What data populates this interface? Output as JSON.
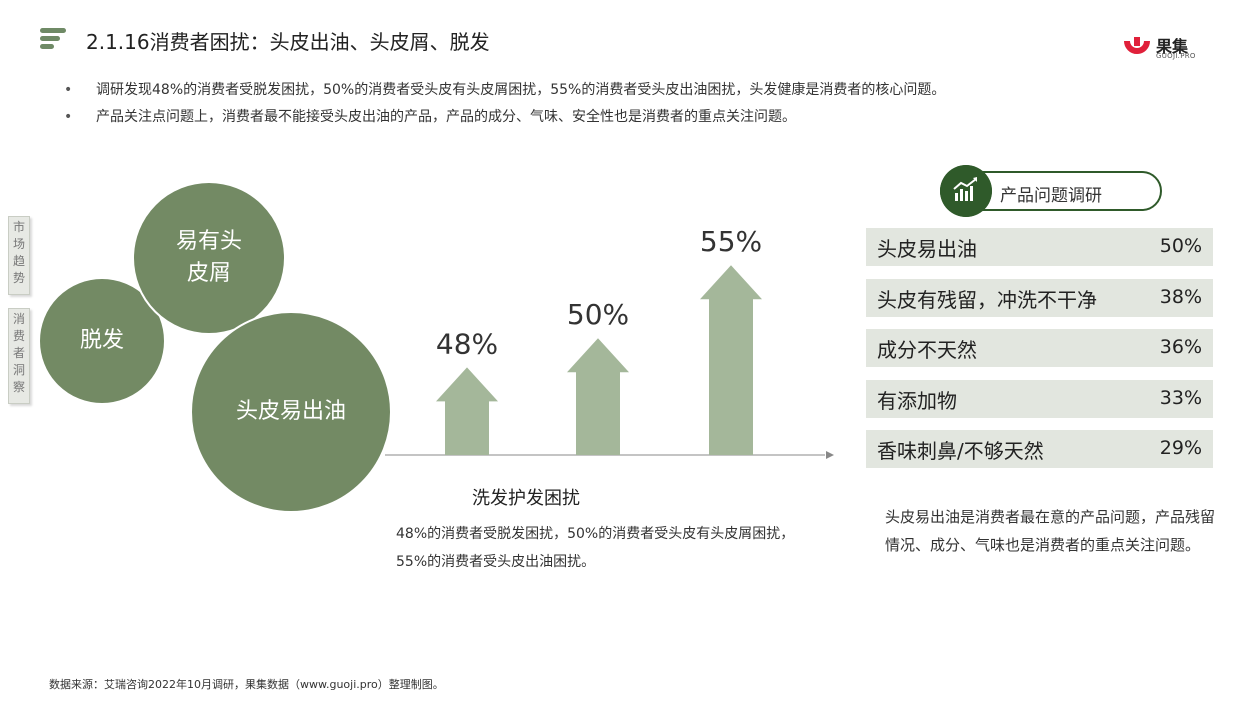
{
  "header": {
    "title": "2.1.16消费者困扰：头皮出油、头皮屑、脱发",
    "logo_name": "果集",
    "logo_sub": "GUOJI.PRO"
  },
  "bullets": [
    "调研发现48%的消费者受脱发困扰，50%的消费者受头皮有头皮屑困扰，55%的消费者受头皮出油困扰，头发健康是消费者的核心问题。",
    "产品关注点问题上，消费者最不能接受头皮出油的产品，产品的成分、气味、安全性也是消费者的重点关注问题。"
  ],
  "side_tabs": [
    "市场趋势",
    "消费者洞察"
  ],
  "bubbles": {
    "hair_loss": "脱发",
    "dandruff": "易有头皮屑",
    "oil": "头皮易出油"
  },
  "chart_label": "洗发护发困扰",
  "chart_desc": "48%的消费者受脱发困扰，50%的消费者受头皮有头皮屑困扰，55%的消费者受头皮出油困扰。",
  "chart_data": {
    "type": "bar",
    "categories": [
      "脱发",
      "易有头皮屑",
      "头皮易出油"
    ],
    "values": [
      48,
      50,
      55
    ],
    "value_labels": [
      "48%",
      "50%",
      "55%"
    ],
    "title": "",
    "xlabel": "",
    "ylabel": "",
    "bar_color": "#a4b79a",
    "axis_color": "#888888"
  },
  "survey": {
    "title": "产品问题调研",
    "items": [
      {
        "label": "头皮易出油",
        "value": "50%"
      },
      {
        "label": "头皮有残留，冲洗不干净",
        "value": "38%"
      },
      {
        "label": "成分不天然",
        "value": "36%"
      },
      {
        "label": "有添加物",
        "value": "33%"
      },
      {
        "label": "香味刺鼻/不够天然",
        "value": "29%"
      }
    ]
  },
  "summary": "头皮易出油是消费者最在意的产品问题，产品残留情况、成分、气味也是消费者的重点关注问题。",
  "source": "数据来源：艾瑞咨询2022年10月调研，果集数据（www.guoji.pro）整理制图。",
  "colors": {
    "accent": "#738a64",
    "dark_green": "#2f5a2a",
    "row_bg": "#e2e6df",
    "logo_red": "#e0203a"
  },
  "icons": [
    "menu-icon",
    "growth-chart-icon",
    "logo-mark-icon"
  ]
}
